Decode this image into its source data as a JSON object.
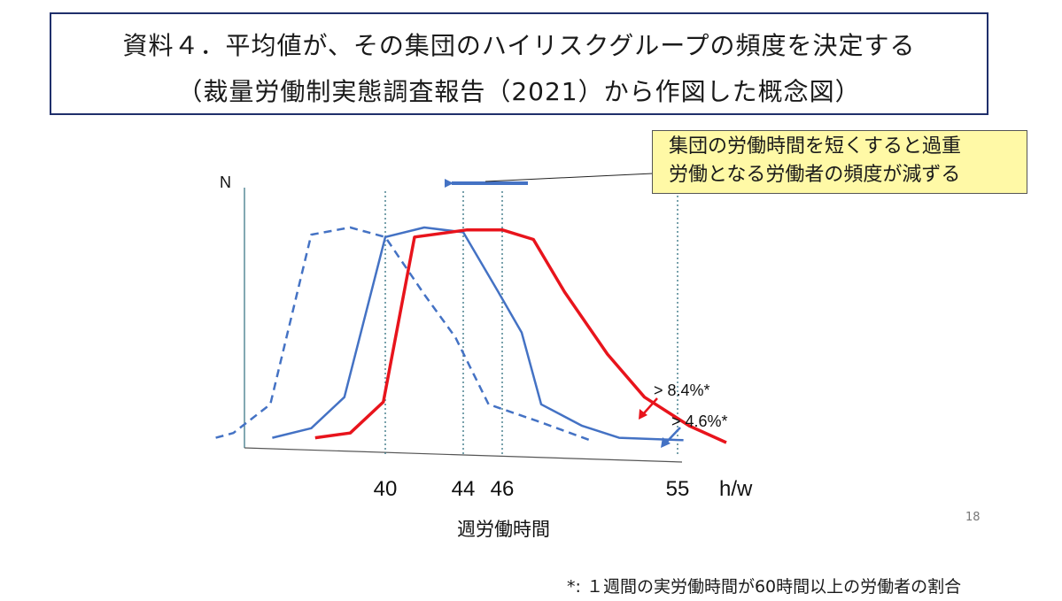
{
  "title": {
    "line1": "資料４．平均値が、その集団のハイリスクグループの頻度を決定する",
    "line2": "（裁量労働制実態調査報告（2021）から作図した概念図）"
  },
  "callout": {
    "line1": "集団の労働時間を短くすると過重",
    "line2": "労働となる労働者の頻度が減ずる"
  },
  "chart_data": {
    "type": "line",
    "ylabel": "N",
    "xlabel": "週労働時間",
    "x_unit_label": "h/w",
    "x_ticks": [
      {
        "value": 40,
        "label": "40"
      },
      {
        "value": 44,
        "label": "44"
      },
      {
        "value": 46,
        "label": "46"
      },
      {
        "value": 55,
        "label": "55"
      }
    ],
    "xlim": [
      32,
      59.5
    ],
    "ylim": [
      0,
      10
    ],
    "series": [
      {
        "id": "dashed-blue",
        "color": "#4472c4",
        "style": "dashed",
        "x": [
          31.3,
          32.2,
          34.1,
          36.2,
          38.2,
          40.0,
          42.0,
          43.6,
          45.3,
          47.8,
          50.5
        ],
        "y": [
          0.2,
          0.4,
          1.6,
          8.7,
          9.0,
          8.6,
          6.2,
          4.4,
          1.6,
          0.9,
          0.1
        ]
      },
      {
        "id": "solid-blue",
        "color": "#4472c4",
        "style": "solid",
        "x": [
          34.2,
          36.2,
          37.9,
          40.0,
          42.0,
          44.0,
          45.8,
          47.0,
          48.0,
          50.1,
          52.0,
          55.3
        ],
        "y": [
          0.2,
          0.6,
          1.9,
          8.6,
          9.0,
          8.8,
          6.3,
          4.6,
          1.6,
          0.7,
          0.2,
          0.1
        ]
      },
      {
        "id": "red",
        "color": "#e8141c",
        "style": "solid",
        "x": [
          36.4,
          38.2,
          39.9,
          41.5,
          44.2,
          46.0,
          47.6,
          49.2,
          51.4,
          53.3,
          55.6,
          57.5
        ],
        "y": [
          0.2,
          0.4,
          1.7,
          8.6,
          8.9,
          8.9,
          8.5,
          6.3,
          3.7,
          1.9,
          0.7,
          0.0
        ]
      }
    ],
    "annotations": [
      {
        "text": "> 8.4%*",
        "color": "#e8141c"
      },
      {
        "text": "> 4.6%*",
        "color": "#4472c4"
      }
    ]
  },
  "page_number": "18",
  "footnote": "*: １週間の実労働時間が60時間以上の労働者の割合"
}
